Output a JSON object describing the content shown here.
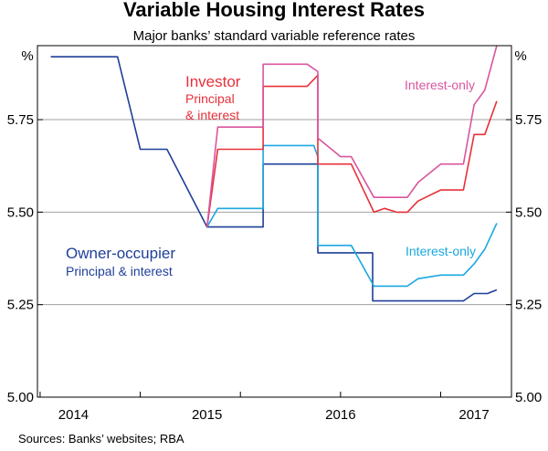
{
  "chart_data": {
    "type": "line",
    "title": "Variable Housing Interest Rates",
    "subtitle": "Major banks’ standard variable reference rates",
    "ylabel_left": "%",
    "ylabel_right": "%",
    "ylim": [
      5.0,
      5.95
    ],
    "y_ticks": [
      "5.00",
      "5.25",
      "5.50",
      "5.75"
    ],
    "y_tick_values": [
      5.0,
      5.25,
      5.5,
      5.75
    ],
    "xlim": [
      2013.73,
      2017.28
    ],
    "x_ticks": [
      "2014",
      "2015",
      "2016",
      "2017"
    ],
    "x_tick_centers": [
      2014.0,
      2015.0,
      2016.0,
      2017.0
    ],
    "x_tick_marks": [
      2013.75,
      2014.5,
      2015.25,
      2016.0,
      2016.75
    ],
    "source": "Sources: Banks’ websites; RBA",
    "annotations": {
      "investor_title": "Investor",
      "investor_sub1": "Principal",
      "investor_sub2": "& interest",
      "investor_io": "Interest-only",
      "owner_title": "Owner-occupier",
      "owner_sub": "Principal & interest",
      "owner_io": "Interest-only"
    },
    "series": [
      {
        "name": "Owner-occupier principal & interest",
        "color": "#1f3f99",
        "x": [
          2013.83,
          2014.33,
          2014.33,
          2014.5,
          2014.5,
          2014.7,
          2015.0,
          2015.42,
          2015.42,
          2015.83,
          2015.83,
          2016.08,
          2016.08,
          2016.12,
          2016.24,
          2016.24,
          2016.92,
          2017.0,
          2017.08,
          2017.1,
          2017.17
        ],
        "y": [
          5.92,
          5.92,
          5.92,
          5.67,
          5.67,
          5.67,
          5.46,
          5.46,
          5.63,
          5.63,
          5.39,
          5.39,
          5.39,
          5.39,
          5.39,
          5.26,
          5.26,
          5.28,
          5.28,
          5.28,
          5.29
        ]
      },
      {
        "name": "Owner-occupier interest-only",
        "color": "#1ba8e0",
        "x": [
          2015.0,
          2015.08,
          2015.25,
          2015.42,
          2015.42,
          2015.8,
          2015.83,
          2015.83,
          2016.08,
          2016.25,
          2016.5,
          2016.58,
          2016.75,
          2016.92,
          2017.0,
          2017.08,
          2017.17
        ],
        "y": [
          5.46,
          5.51,
          5.51,
          5.51,
          5.68,
          5.68,
          5.65,
          5.41,
          5.41,
          5.3,
          5.3,
          5.32,
          5.33,
          5.33,
          5.36,
          5.4,
          5.47
        ]
      },
      {
        "name": "Investor principal & interest",
        "color": "#e8303a",
        "x": [
          2015.0,
          2015.08,
          2015.25,
          2015.42,
          2015.42,
          2015.75,
          2015.83,
          2015.83,
          2016.0,
          2016.08,
          2016.25,
          2016.33,
          2016.42,
          2016.5,
          2016.58,
          2016.75,
          2016.92,
          2017.0,
          2017.08,
          2017.17
        ],
        "y": [
          5.46,
          5.67,
          5.67,
          5.67,
          5.84,
          5.84,
          5.87,
          5.63,
          5.63,
          5.63,
          5.5,
          5.51,
          5.5,
          5.5,
          5.53,
          5.56,
          5.56,
          5.71,
          5.71,
          5.8
        ]
      },
      {
        "name": "Investor interest-only",
        "color": "#d9559e",
        "x": [
          2015.0,
          2015.08,
          2015.25,
          2015.42,
          2015.42,
          2015.75,
          2015.83,
          2015.83,
          2016.0,
          2016.08,
          2016.25,
          2016.5,
          2016.58,
          2016.75,
          2016.92,
          2017.0,
          2017.08,
          2017.17
        ],
        "y": [
          5.46,
          5.73,
          5.73,
          5.73,
          5.9,
          5.9,
          5.88,
          5.7,
          5.65,
          5.65,
          5.54,
          5.54,
          5.58,
          5.63,
          5.63,
          5.79,
          5.83,
          5.95
        ]
      }
    ]
  }
}
